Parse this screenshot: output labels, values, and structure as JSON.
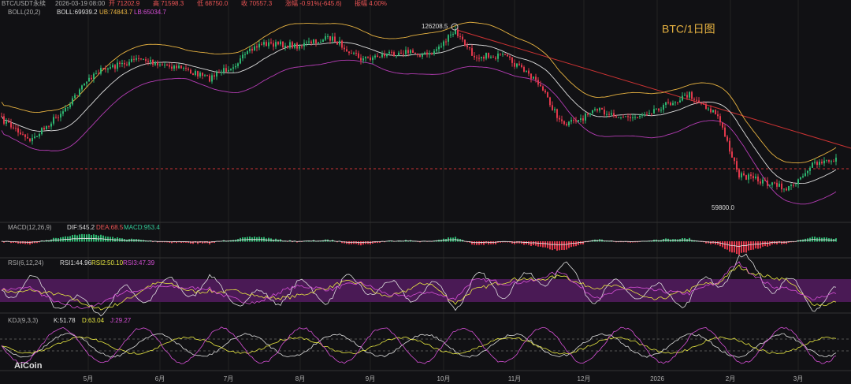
{
  "header": {
    "symbol": "BTC/USDT永续",
    "date": "2026-03-19 08:00",
    "open": "开 71202.9",
    "high": "高 71598.3",
    "low": "低 68750.0",
    "close": "收 70557.3",
    "change": "涨幅 -0.91%(-645.6)",
    "amplitude": "振幅 4.00%"
  },
  "boll": {
    "label": "BOLL(20,2)",
    "mid": "BOLL:69939.2",
    "ub": "UB:74843.7",
    "lb": "LB:65034.7"
  },
  "annotations": {
    "peak": "126208.5",
    "bottom": "59800.0",
    "title": "BTC/1日图"
  },
  "macd": {
    "label": "MACD(12,26,9)",
    "dif": "DIF:545.2",
    "dea": "DEA:68.5",
    "macd": "MACD:953.4"
  },
  "rsi": {
    "label": "RSI(6,12,24)",
    "rsi1": "RSI1:44.96",
    "rsi2": "RSI2:50.10",
    "rsi3": "RSI3:47.39"
  },
  "kdj": {
    "label": "KDJ(9,3,3)",
    "k": "K:51.78",
    "d": "D:63.04",
    "j": "J:29.27"
  },
  "x_axis": [
    "5月",
    "6月",
    "7月",
    "8月",
    "9月",
    "10月",
    "11月",
    "12月",
    "2026",
    "2月",
    "3月"
  ],
  "logo": "AiCoin"
}
